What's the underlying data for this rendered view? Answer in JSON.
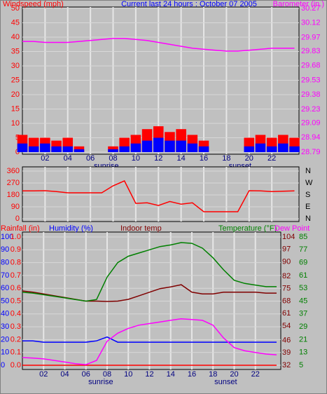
{
  "chart_data": [
    {
      "type": "combo",
      "title": "Current last 24 hours : October 07 2005",
      "x": [
        0,
        1,
        2,
        3,
        4,
        5,
        6,
        7,
        8,
        9,
        10,
        11,
        12,
        13,
        14,
        15,
        16,
        17,
        18,
        19,
        20,
        21,
        22,
        23,
        24
      ],
      "xlim": [
        0,
        24.4
      ],
      "xticks": [
        {
          "value": 2,
          "label": "02"
        },
        {
          "value": 4,
          "label": "04"
        },
        {
          "value": 6,
          "label": "06"
        },
        {
          "value": 8,
          "label": "08"
        },
        10,
        12,
        14,
        16,
        18,
        20,
        22
      ],
      "annotations": [
        {
          "text": "sunrise",
          "x": 7.4
        },
        {
          "text": "sunset",
          "x": 19.2
        }
      ],
      "ylim": [
        0,
        50
      ],
      "yticks": [
        0,
        5,
        10,
        15,
        20,
        25,
        30,
        35,
        40,
        45,
        50
      ],
      "y2lim": [
        28.79,
        30.27
      ],
      "y2ticks": [
        28.79,
        28.94,
        29.09,
        29.23,
        29.38,
        29.53,
        29.68,
        29.83,
        29.97,
        30.12,
        30.27
      ],
      "grid": true,
      "series": [
        {
          "name": "Windspeed (mph)",
          "type": "bar",
          "color": "#ff0000",
          "values": [
            6,
            5,
            5,
            4,
            5,
            2,
            0,
            0,
            2,
            5,
            6,
            8,
            9,
            7,
            8,
            6,
            4,
            0,
            0,
            0,
            5,
            6,
            5,
            6,
            5
          ]
        },
        {
          "type": "bar",
          "color": "#0000ff",
          "values": [
            3,
            2,
            3,
            2,
            2,
            1,
            0,
            0,
            1,
            2,
            3,
            4,
            5,
            4,
            4,
            3,
            2,
            0,
            0,
            0,
            2,
            3,
            2,
            3,
            2
          ]
        },
        {
          "name": "Barometer (in.)",
          "type": "line",
          "color": "#ff00ff",
          "axis": "y2",
          "values": [
            29.93,
            29.93,
            29.92,
            29.92,
            29.92,
            29.93,
            29.94,
            29.95,
            29.96,
            29.96,
            29.95,
            29.94,
            29.92,
            29.9,
            29.88,
            29.86,
            29.85,
            29.84,
            29.83,
            29.83,
            29.84,
            29.85,
            29.86,
            29.86,
            29.86
          ]
        }
      ]
    },
    {
      "type": "line",
      "x": [
        0,
        1,
        2,
        3,
        4,
        5,
        6,
        7,
        8,
        9,
        10,
        11,
        12,
        13,
        14,
        15,
        16,
        17,
        18,
        19,
        20,
        21,
        22,
        23,
        24
      ],
      "xlim": [
        0,
        24.4
      ],
      "ylim": [
        0,
        360
      ],
      "yticks": [
        0,
        90,
        180,
        270,
        360
      ],
      "y2lim": [
        0,
        360
      ],
      "y2ticks": [
        {
          "value": 0,
          "label": "N"
        },
        {
          "value": 90,
          "label": "E"
        },
        {
          "value": 180,
          "label": "S"
        },
        {
          "value": 270,
          "label": "W"
        },
        {
          "value": 360,
          "label": "N"
        }
      ],
      "grid": true,
      "series": [
        {
          "type": "line",
          "color": "#ff0000",
          "values": [
            210,
            210,
            212,
            205,
            196,
            196,
            196,
            196,
            249,
            286,
            116,
            120,
            100,
            130,
            110,
            120,
            53,
            53,
            53,
            53,
            212,
            210,
            205,
            208,
            210
          ]
        }
      ]
    },
    {
      "type": "line",
      "x": [
        0,
        1,
        2,
        3,
        4,
        5,
        6,
        7,
        8,
        9,
        10,
        11,
        12,
        13,
        14,
        15,
        16,
        17,
        18,
        19,
        20,
        21,
        22,
        23,
        24
      ],
      "xlim": [
        0,
        24.4
      ],
      "xticks": [
        {
          "value": 2,
          "label": "02"
        },
        {
          "value": 4,
          "label": "04"
        },
        {
          "value": 6,
          "label": "06"
        },
        {
          "value": 8,
          "label": "08"
        },
        10,
        12,
        14,
        16,
        18,
        20,
        22
      ],
      "annotations": [
        {
          "text": "sunrise",
          "x": 7.4
        },
        {
          "text": "sunset",
          "x": 19.2
        }
      ],
      "ylim": [
        0,
        100
      ],
      "yticks": [
        0,
        10,
        20,
        30,
        40,
        50,
        60,
        70,
        80,
        90,
        100
      ],
      "y3lim": [
        0,
        1
      ],
      "y3ticks": [
        {
          "value": 0,
          "label": "0.0"
        },
        0.1,
        0.2,
        0.3,
        0.4,
        0.5,
        0.6,
        0.7,
        0.8,
        0.9,
        {
          "value": 1,
          "label": "1.0"
        }
      ],
      "y2lim": [
        32,
        104
      ],
      "y2ticks": [
        32,
        39,
        46,
        54,
        61,
        68,
        75,
        82,
        90,
        97,
        104
      ],
      "y4lim": [
        5,
        85
      ],
      "y4ticks": [
        5,
        13,
        21,
        29,
        37,
        45,
        53,
        61,
        69,
        77,
        85
      ],
      "grid": true,
      "series": [
        {
          "name": "Rainfall (in)",
          "type": "line",
          "color": "#ff0000",
          "axis": "y3",
          "values": [
            0,
            0,
            0,
            0,
            0,
            0,
            0,
            0,
            0,
            0,
            0,
            0,
            0,
            0,
            0,
            0,
            0,
            0,
            0,
            0,
            0,
            0,
            0,
            0,
            0
          ]
        },
        {
          "name": "Humidity (%)",
          "type": "line",
          "color": "#0000ff",
          "values": [
            19,
            19,
            18,
            18,
            18,
            18,
            18,
            19,
            22,
            18,
            18,
            18,
            18,
            18,
            18,
            18,
            18,
            18,
            18,
            18,
            18,
            18,
            18,
            18,
            18
          ]
        },
        {
          "name": "Indoor temp",
          "type": "line",
          "color": "#800000",
          "axis": "y2",
          "values": [
            73.7,
            73,
            72,
            71,
            70,
            69,
            68,
            68,
            67.8,
            68,
            69,
            71,
            73,
            75,
            76,
            77.2,
            73,
            72,
            72,
            73,
            73,
            73,
            73,
            72.5,
            72.5
          ]
        },
        {
          "name": "Temperature (°F)",
          "type": "line",
          "color": "#008000",
          "axis": "y4",
          "values": [
            50.5,
            50,
            49,
            48,
            47,
            46,
            45,
            46,
            60,
            69,
            73,
            75,
            77,
            79,
            80,
            81.5,
            81,
            78,
            72,
            64.5,
            58,
            56,
            55,
            54,
            54
          ]
        },
        {
          "name": "Dew Point",
          "type": "line",
          "color": "#ff00ff",
          "axis": "y4",
          "values": [
            9.8,
            9.5,
            9,
            8,
            7,
            6,
            5.4,
            8,
            20,
            25,
            28,
            30,
            31,
            32,
            33,
            34,
            33.5,
            33,
            30,
            22,
            16,
            14,
            13,
            12,
            11.5
          ]
        }
      ]
    }
  ]
}
